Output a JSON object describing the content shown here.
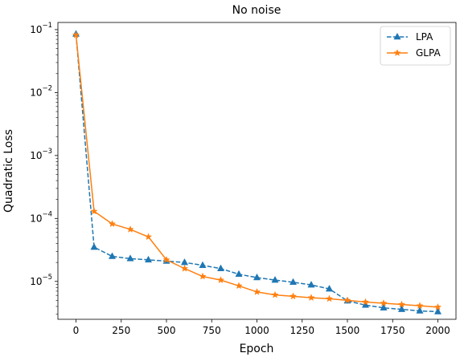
{
  "chart_data": {
    "type": "line",
    "title": "No noise",
    "xlabel": "Epoch",
    "ylabel": "Quadratic Loss",
    "x_scale": "linear",
    "y_scale": "log",
    "xlim": [
      -100,
      2100
    ],
    "ylim": [
      2.5e-06,
      0.13
    ],
    "x_ticks": [
      0,
      250,
      500,
      750,
      1000,
      1250,
      1500,
      1750,
      2000
    ],
    "x_tick_labels": [
      "0",
      "250",
      "500",
      "750",
      "1000",
      "1250",
      "1500",
      "1750",
      "2000"
    ],
    "y_ticks": [
      1e-05,
      0.0001,
      0.001,
      0.01,
      0.1
    ],
    "y_tick_labels": [
      {
        "base": "10",
        "exp": "−5"
      },
      {
        "base": "10",
        "exp": "−4"
      },
      {
        "base": "10",
        "exp": "−3"
      },
      {
        "base": "10",
        "exp": "−2"
      },
      {
        "base": "10",
        "exp": "−1"
      }
    ],
    "grid": false,
    "legend_position": "top-right",
    "x": [
      0,
      100,
      200,
      300,
      400,
      500,
      600,
      700,
      800,
      900,
      1000,
      1100,
      1200,
      1300,
      1400,
      1500,
      1600,
      1700,
      1800,
      1900,
      2000
    ],
    "series": [
      {
        "name": "LPA",
        "color": "#1f77b4",
        "linestyle": "dashed",
        "marker": "triangle",
        "values": [
          0.085,
          3.5e-05,
          2.5e-05,
          2.3e-05,
          2.2e-05,
          2.1e-05,
          2e-05,
          1.8e-05,
          1.6e-05,
          1.3e-05,
          1.15e-05,
          1.05e-05,
          9.7e-06,
          8.8e-06,
          7.6e-06,
          4.9e-06,
          4.2e-06,
          3.8e-06,
          3.6e-06,
          3.4e-06,
          3.3e-06
        ]
      },
      {
        "name": "GLPA",
        "color": "#ff7f0e",
        "linestyle": "solid",
        "marker": "star",
        "values": [
          0.082,
          0.00013,
          8.2e-05,
          6.7e-05,
          5.1e-05,
          2.2e-05,
          1.6e-05,
          1.2e-05,
          1.05e-05,
          8.5e-06,
          6.8e-06,
          6.1e-06,
          5.8e-06,
          5.5e-06,
          5.3e-06,
          5e-06,
          4.7e-06,
          4.5e-06,
          4.3e-06,
          4.1e-06,
          3.9e-06
        ]
      }
    ]
  }
}
